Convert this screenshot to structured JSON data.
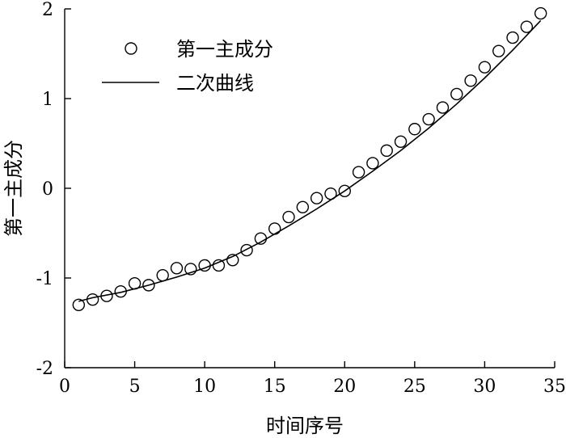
{
  "chart_data": {
    "type": "scatter",
    "title": "",
    "xlabel": "时间序号",
    "ylabel": "第一主成分",
    "xlim": [
      0,
      35
    ],
    "ylim": [
      -2,
      2
    ],
    "xticks": [
      0,
      5,
      10,
      15,
      20,
      25,
      30,
      35
    ],
    "yticks": [
      -2,
      -1,
      0,
      1,
      2
    ],
    "grid": false,
    "legend_position": "top-left",
    "series": [
      {
        "name": "第一主成分",
        "kind": "scatter",
        "marker": "open-circle",
        "color": "#000000",
        "x": [
          1,
          2,
          3,
          4,
          5,
          6,
          7,
          8,
          9,
          10,
          11,
          12,
          13,
          14,
          15,
          16,
          17,
          18,
          19,
          20,
          21,
          22,
          23,
          24,
          25,
          26,
          27,
          28,
          29,
          30,
          31,
          32,
          33,
          34
        ],
        "y": [
          -1.3,
          -1.24,
          -1.2,
          -1.15,
          -1.06,
          -1.08,
          -0.97,
          -0.89,
          -0.9,
          -0.86,
          -0.86,
          -0.8,
          -0.69,
          -0.56,
          -0.45,
          -0.32,
          -0.21,
          -0.11,
          -0.06,
          -0.03,
          0.18,
          0.28,
          0.42,
          0.52,
          0.66,
          0.77,
          0.9,
          1.05,
          1.2,
          1.35,
          1.53,
          1.68,
          1.8,
          1.95
        ]
      },
      {
        "name": "二次曲线",
        "kind": "line",
        "color": "#000000",
        "x": [
          1,
          2,
          4,
          6,
          8,
          10,
          12,
          14,
          16,
          18,
          20,
          22,
          24,
          26,
          28,
          30,
          32,
          34
        ],
        "y": [
          -1.26,
          -1.22,
          -1.16,
          -1.08,
          -0.99,
          -0.89,
          -0.76,
          -0.6,
          -0.42,
          -0.23,
          -0.03,
          0.19,
          0.42,
          0.67,
          0.94,
          1.23,
          1.54,
          1.87
        ]
      }
    ]
  }
}
